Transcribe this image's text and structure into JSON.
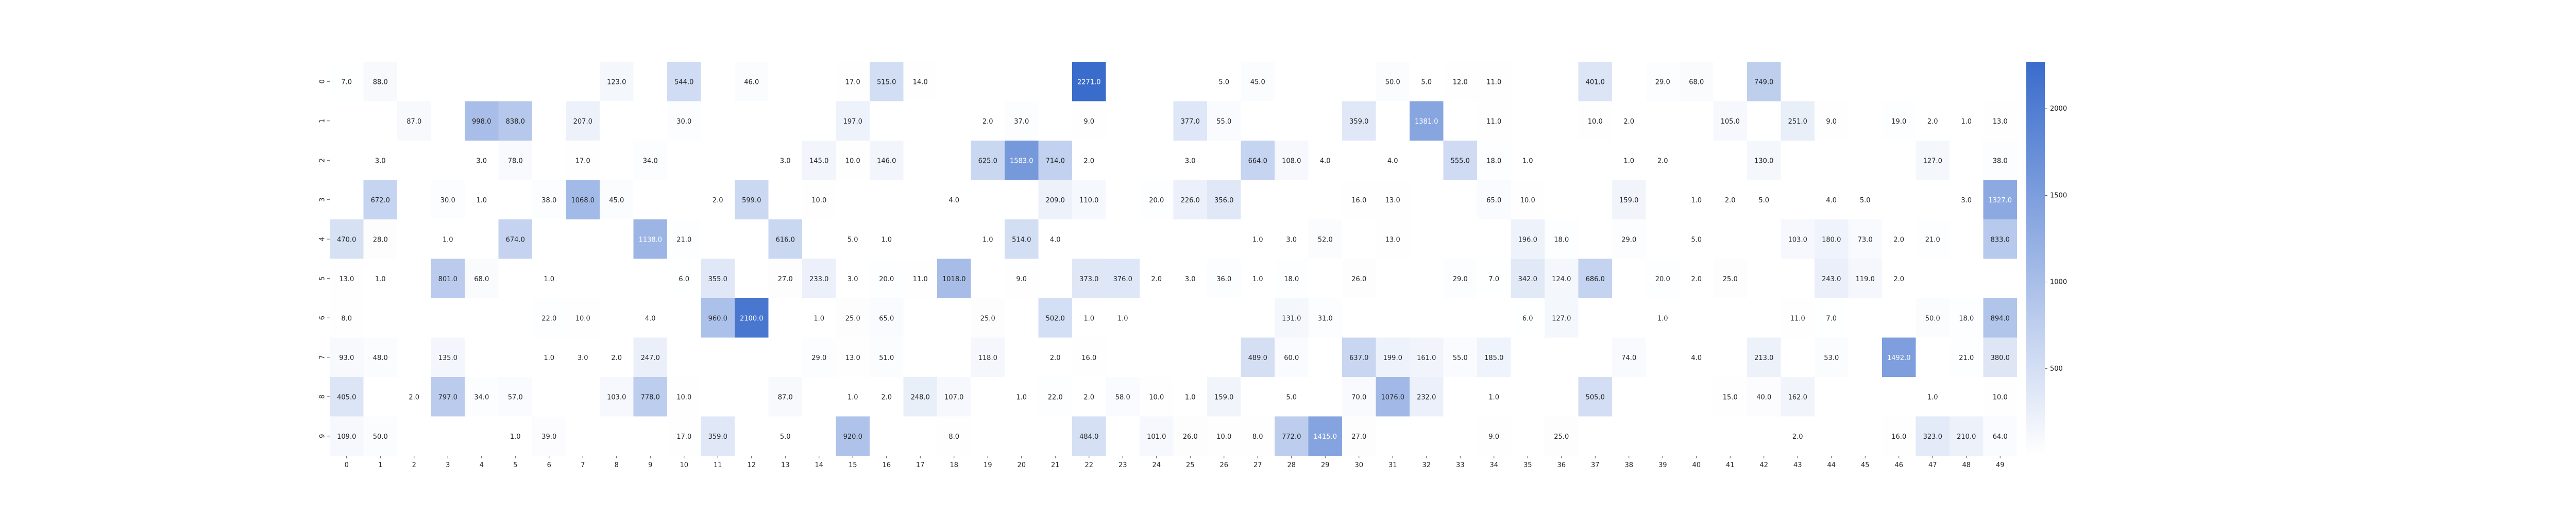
{
  "chart_data": {
    "type": "heatmap",
    "title": "",
    "xlabel": "",
    "ylabel": "",
    "x_categories": [
      "0",
      "1",
      "2",
      "3",
      "4",
      "5",
      "6",
      "7",
      "8",
      "9",
      "10",
      "11",
      "12",
      "13",
      "14",
      "15",
      "16",
      "17",
      "18",
      "19",
      "20",
      "21",
      "22",
      "23",
      "24",
      "25",
      "26",
      "27",
      "28",
      "29",
      "30",
      "31",
      "32",
      "33",
      "34",
      "35",
      "36",
      "37",
      "38",
      "39",
      "40",
      "41",
      "42",
      "43",
      "44",
      "45",
      "46",
      "47",
      "48",
      "49"
    ],
    "y_categories": [
      "0",
      "1",
      "2",
      "3",
      "4",
      "5",
      "6",
      "7",
      "8",
      "9"
    ],
    "value_format": "one_decimal",
    "blank_cells": "missing",
    "colorbar": {
      "range": [
        0,
        2271
      ],
      "ticks": [
        500,
        1000,
        1500,
        2000
      ],
      "color_low": "#ffffff",
      "color_high": "#3a6ccc"
    },
    "values": [
      [
        7,
        88,
        null,
        null,
        null,
        null,
        null,
        null,
        123,
        null,
        544,
        null,
        46,
        null,
        null,
        17,
        515,
        14,
        null,
        null,
        null,
        null,
        2271,
        null,
        null,
        null,
        5,
        45,
        null,
        null,
        null,
        50,
        5,
        12,
        11,
        null,
        null,
        401,
        null,
        29,
        68,
        null,
        749,
        null,
        null,
        null,
        null,
        null,
        null,
        null
      ],
      [
        null,
        null,
        87,
        null,
        998,
        838,
        null,
        207,
        null,
        null,
        30,
        null,
        null,
        null,
        null,
        197,
        null,
        null,
        null,
        2,
        37,
        null,
        9,
        null,
        null,
        377,
        55,
        null,
        null,
        null,
        359,
        null,
        1381,
        null,
        11,
        null,
        null,
        10,
        2,
        null,
        null,
        105,
        null,
        251,
        9,
        null,
        19,
        2,
        1,
        13
      ],
      [
        null,
        3,
        null,
        null,
        3,
        78,
        null,
        17,
        null,
        34,
        null,
        null,
        null,
        3,
        145,
        10,
        146,
        null,
        null,
        625,
        1583,
        714,
        2,
        null,
        null,
        3,
        null,
        664,
        108,
        4,
        null,
        4,
        null,
        555,
        18,
        1,
        null,
        null,
        1,
        2,
        null,
        null,
        130,
        null,
        null,
        null,
        null,
        127,
        null,
        38
      ],
      [
        null,
        672,
        null,
        30,
        1,
        null,
        38,
        1068,
        45,
        null,
        null,
        2,
        599,
        null,
        10,
        null,
        null,
        null,
        4,
        null,
        null,
        209,
        110,
        null,
        20,
        226,
        356,
        null,
        null,
        null,
        16,
        13,
        null,
        null,
        65,
        10,
        null,
        null,
        159,
        null,
        1,
        2,
        5,
        null,
        4,
        5,
        null,
        null,
        3,
        1327
      ],
      [
        470,
        28,
        null,
        1,
        null,
        674,
        null,
        null,
        null,
        1138,
        21,
        null,
        null,
        616,
        null,
        5,
        1,
        null,
        null,
        1,
        514,
        4,
        null,
        null,
        null,
        null,
        null,
        1,
        3,
        52,
        null,
        13,
        null,
        null,
        null,
        196,
        18,
        null,
        29,
        null,
        5,
        null,
        null,
        103,
        180,
        73,
        2,
        21,
        null,
        833
      ],
      [
        13,
        1,
        null,
        801,
        68,
        null,
        1,
        null,
        null,
        null,
        6,
        355,
        null,
        27,
        233,
        3,
        20,
        11,
        1018,
        null,
        9,
        null,
        373,
        376,
        2,
        3,
        36,
        1,
        18,
        null,
        26,
        null,
        null,
        29,
        7,
        342,
        124,
        686,
        null,
        20,
        2,
        25,
        null,
        null,
        243,
        119,
        2,
        null,
        null,
        null
      ],
      [
        8,
        null,
        null,
        null,
        null,
        null,
        22,
        10,
        null,
        4,
        null,
        960,
        2100,
        null,
        1,
        25,
        65,
        null,
        null,
        25,
        null,
        502,
        1,
        1,
        null,
        null,
        null,
        null,
        131,
        31,
        null,
        null,
        null,
        null,
        null,
        6,
        127,
        null,
        null,
        1,
        null,
        null,
        null,
        11,
        7,
        null,
        null,
        50,
        18,
        894
      ],
      [
        93,
        48,
        null,
        135,
        null,
        null,
        1,
        3,
        2,
        247,
        null,
        null,
        null,
        null,
        29,
        13,
        51,
        null,
        null,
        118,
        null,
        2,
        16,
        null,
        null,
        null,
        null,
        489,
        60,
        null,
        637,
        199,
        161,
        55,
        185,
        null,
        null,
        null,
        74,
        null,
        4,
        null,
        213,
        null,
        53,
        null,
        1492,
        null,
        21,
        380
      ],
      [
        405,
        null,
        2,
        797,
        34,
        57,
        null,
        null,
        103,
        778,
        10,
        null,
        null,
        87,
        null,
        1,
        2,
        248,
        107,
        null,
        1,
        22,
        2,
        58,
        10,
        1,
        159,
        null,
        5,
        null,
        70,
        1076,
        232,
        null,
        1,
        null,
        null,
        505,
        null,
        null,
        null,
        15,
        40,
        162,
        null,
        null,
        null,
        1,
        null,
        10
      ],
      [
        109,
        50,
        null,
        null,
        null,
        1,
        39,
        null,
        null,
        null,
        17,
        359,
        null,
        5,
        null,
        920,
        null,
        null,
        8,
        null,
        null,
        null,
        484,
        null,
        101,
        26,
        10,
        8,
        772,
        1415,
        27,
        null,
        null,
        null,
        9,
        null,
        25,
        null,
        null,
        null,
        null,
        null,
        null,
        2,
        null,
        null,
        16,
        323,
        210,
        64
      ]
    ]
  }
}
